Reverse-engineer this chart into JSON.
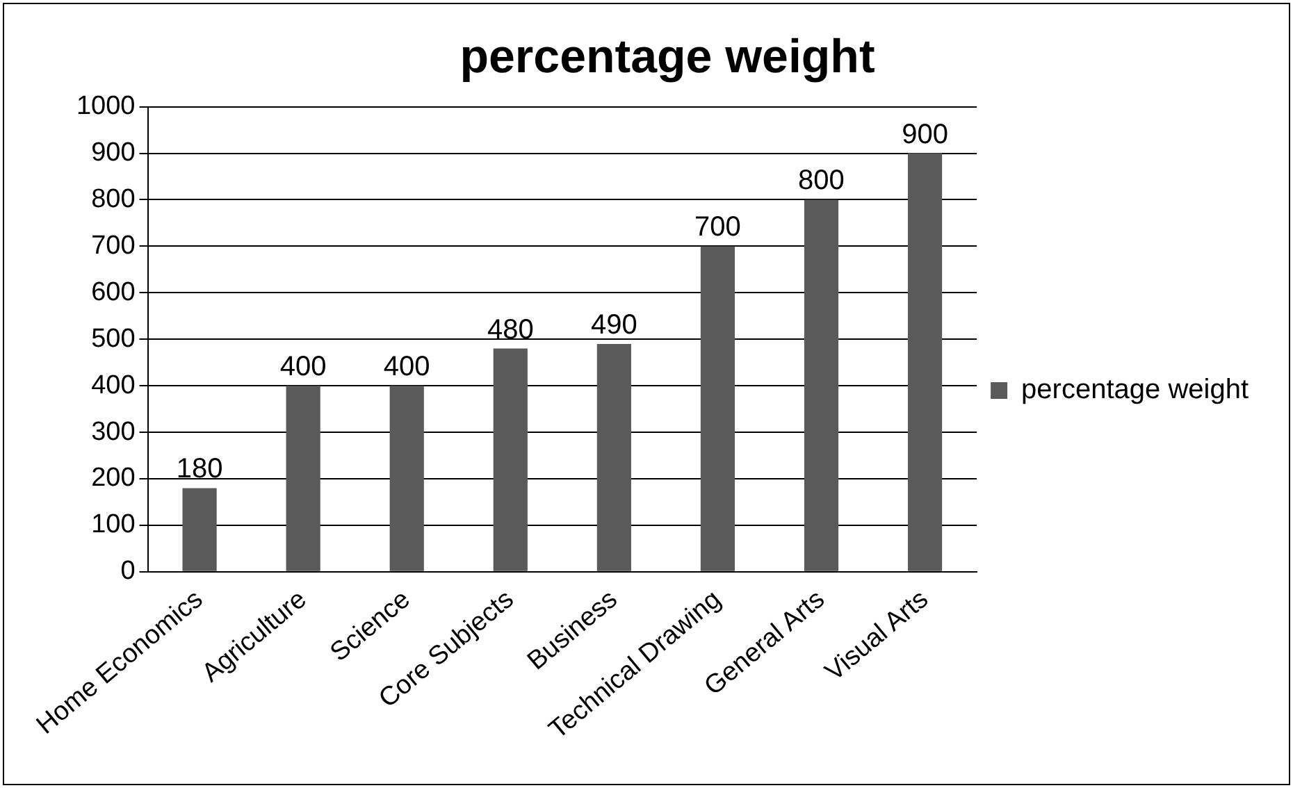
{
  "chart_data": {
    "type": "bar",
    "title": "percentage weight",
    "categories": [
      "Home Economics",
      "Agriculture",
      "Science",
      "Core Subjects",
      "Business",
      "Technical Drawing",
      "General Arts",
      "Visual Arts"
    ],
    "series": [
      {
        "name": "percentage weight",
        "color": "#5a5a5a",
        "values": [
          180,
          400,
          400,
          480,
          490,
          700,
          800,
          900
        ]
      }
    ],
    "ylim": [
      0,
      1000
    ],
    "yticks": [
      0,
      100,
      200,
      300,
      400,
      500,
      600,
      700,
      800,
      900,
      1000
    ],
    "grid": "y",
    "legend": "right",
    "data_labels": true
  }
}
